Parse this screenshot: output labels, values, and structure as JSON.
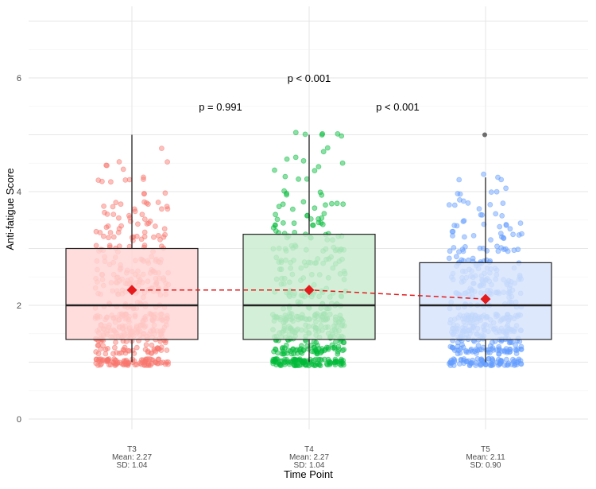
{
  "chart_data": {
    "type": "box",
    "title": "",
    "xlabel": "Time Point",
    "ylabel": "Anti-fatigue Score",
    "ylim": [
      -0.3,
      7
    ],
    "y_ticks": [
      0,
      2,
      4,
      6
    ],
    "grid": true,
    "categories": [
      {
        "name": "T3",
        "mean_label": "Mean: 2.27",
        "sd_label": "SD: 1.04",
        "color": "#f8766d",
        "fill": "#ffd6d4",
        "q1": 1.4,
        "median": 2.0,
        "q3": 3.0,
        "whisker_low": 1.0,
        "whisker_high": 5.0,
        "mean": 2.27,
        "outliers": []
      },
      {
        "name": "T4",
        "mean_label": "Mean: 2.27",
        "sd_label": "SD: 1.04",
        "color": "#00ba38",
        "fill": "#c9ebcf",
        "q1": 1.4,
        "median": 2.0,
        "q3": 3.25,
        "whisker_low": 1.0,
        "whisker_high": 5.0,
        "mean": 2.27,
        "outliers": []
      },
      {
        "name": "T5",
        "mean_label": "Mean: 2.11",
        "sd_label": "SD: 0.90",
        "color": "#619cff",
        "fill": "#d6e3fb",
        "q1": 1.4,
        "median": 2.0,
        "q3": 2.75,
        "whisker_low": 1.0,
        "whisker_high": 4.25,
        "mean": 2.11,
        "outliers": [
          5.0
        ]
      }
    ],
    "annotations": [
      {
        "text": "p = 0.991",
        "x": 1.5,
        "y": 5.5
      },
      {
        "text": "p < 0.001",
        "x": 2.5,
        "y": 5.5
      },
      {
        "text": "p < 0.001",
        "x": 2.0,
        "y": 6.0
      }
    ]
  }
}
